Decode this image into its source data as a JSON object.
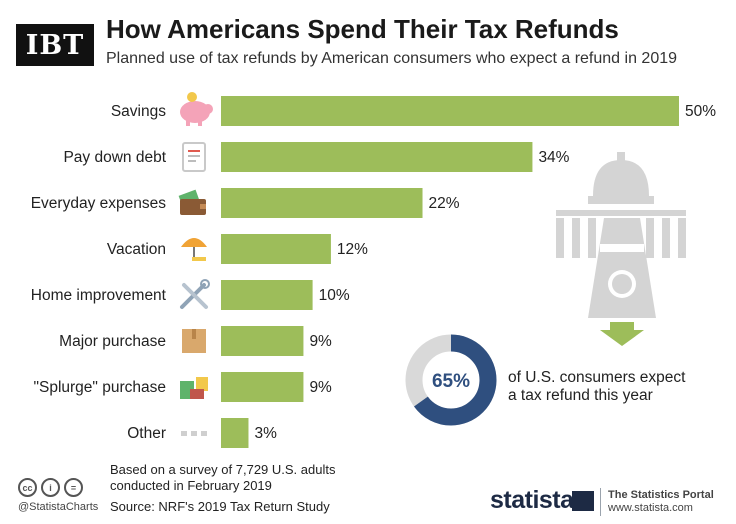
{
  "header": {
    "logo": "IBT",
    "title": "How Americans Spend Their Tax Refunds",
    "subtitle": "Planned use of tax refunds by American consumers who expect a refund in 2019"
  },
  "chart_data": {
    "type": "bar",
    "orientation": "horizontal",
    "title": "How Americans Spend Their Tax Refunds",
    "subtitle": "Planned use of tax refunds by American consumers who expect a refund in 2019",
    "categories": [
      "Savings",
      "Pay down debt",
      "Everyday expenses",
      "Vacation",
      "Home improvement",
      "Major purchase",
      "\"Splurge\" purchase",
      "Other"
    ],
    "values": [
      50,
      34,
      22,
      12,
      10,
      9,
      9,
      3
    ],
    "value_labels": [
      "50%",
      "34%",
      "22%",
      "12%",
      "10%",
      "9%",
      "9%",
      "3%"
    ],
    "icons": [
      "piggy-bank-icon",
      "bill-icon",
      "wallet-icon",
      "beach-umbrella-icon",
      "tools-icon",
      "box-icon",
      "shopping-bags-icon",
      "dots-icon"
    ],
    "bar_color": "#9dbd5a",
    "xlim": [
      0,
      50
    ],
    "grid": false
  },
  "donut": {
    "value": 65,
    "label": "65%",
    "text_line1": "of U.S. consumers expect",
    "text_line2": "a tax refund this year",
    "fill_color": "#2f4f7f",
    "track_color": "#d9d9d9"
  },
  "footer": {
    "note_line1": "Based on a survey of 7,729 U.S. adults",
    "note_line2": "conducted in February 2019",
    "source": "Source: NRF's 2019 Tax Return Study",
    "handle": "@StatistaCharts",
    "cc_icons": [
      "cc",
      "i",
      "="
    ],
    "brand": "statista",
    "portal_line1": "The Statistics Portal",
    "portal_line2": "www.statista.com"
  }
}
